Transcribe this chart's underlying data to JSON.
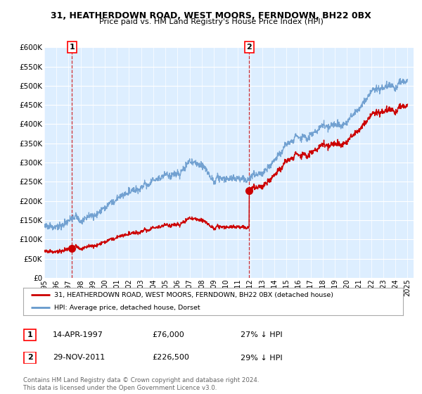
{
  "title1": "31, HEATHERDOWN ROAD, WEST MOORS, FERNDOWN, BH22 0BX",
  "title2": "Price paid vs. HM Land Registry's House Price Index (HPI)",
  "ylim": [
    0,
    600000
  ],
  "yticks": [
    0,
    50000,
    100000,
    150000,
    200000,
    250000,
    300000,
    350000,
    400000,
    450000,
    500000,
    550000,
    600000
  ],
  "xlim_start": 1995.0,
  "xlim_end": 2025.5,
  "bg_color": "#ddeeff",
  "grid_color": "#ffffff",
  "hpi_color": "#6699cc",
  "price_color": "#cc0000",
  "sale1_date": 1997.29,
  "sale1_price": 76000,
  "sale2_date": 2011.92,
  "sale2_price": 226500,
  "legend_line1": "31, HEATHERDOWN ROAD, WEST MOORS, FERNDOWN, BH22 0BX (detached house)",
  "legend_line2": "HPI: Average price, detached house, Dorset",
  "annot1_label": "1",
  "annot1_date": "14-APR-1997",
  "annot1_price": "£76,000",
  "annot1_hpi": "27% ↓ HPI",
  "annot2_label": "2",
  "annot2_date": "29-NOV-2011",
  "annot2_price": "£226,500",
  "annot2_hpi": "29% ↓ HPI",
  "footer": "Contains HM Land Registry data © Crown copyright and database right 2024.\nThis data is licensed under the Open Government Licence v3.0."
}
